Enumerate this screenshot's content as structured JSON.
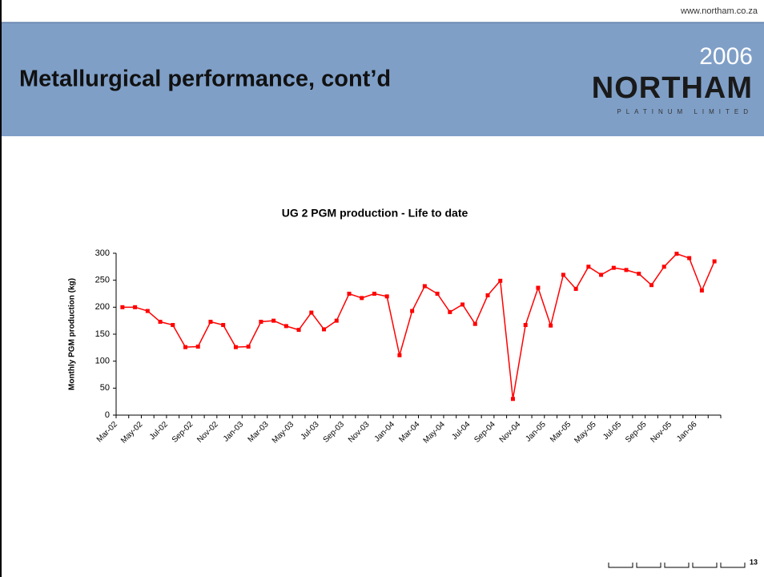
{
  "header": {
    "url": "www.northam.co.za",
    "title": "Metallurgical performance, cont’d",
    "year": "2006",
    "logo": "NORTHAM",
    "logo_sub": "PLATINUM LIMITED"
  },
  "page_number": "13",
  "chart_data": {
    "type": "line",
    "title": "UG 2 PGM production - Life to date",
    "y_label": "Monthly PGM production (kg)",
    "categories": [
      "Mar-02",
      null,
      "May-02",
      null,
      "Jul-02",
      null,
      "Sep-02",
      null,
      "Nov-02",
      null,
      "Jan-03",
      null,
      "Mar-03",
      null,
      "May-03",
      null,
      "Jul-03",
      null,
      "Sep-03",
      null,
      "Nov-03",
      null,
      "Jan-04",
      null,
      "Mar-04",
      null,
      "May-04",
      null,
      "Jul-04",
      null,
      "Sep-04",
      null,
      "Nov-04",
      null,
      "Jan-05",
      null,
      "Mar-05",
      null,
      "May-05",
      null,
      "Jul-05",
      null,
      "Sep-05",
      null,
      "Nov-05",
      null,
      "Jan-06",
      null
    ],
    "series": [
      {
        "name": "UG 2 PGM production",
        "color": "#ff0000",
        "values": [
          200,
          200,
          193,
          173,
          167,
          126,
          127,
          173,
          167,
          126,
          127,
          173,
          175,
          165,
          158,
          190,
          159,
          175,
          225,
          217,
          225,
          220,
          111,
          193,
          239,
          225,
          191,
          205,
          169,
          222,
          249,
          30,
          167,
          236,
          166,
          260,
          234,
          275,
          260,
          273,
          269,
          262,
          241,
          275,
          299,
          291,
          231,
          285
        ]
      }
    ],
    "ylim": [
      0,
      300
    ],
    "yticks": [
      0,
      50,
      100,
      150,
      200,
      250,
      300
    ],
    "grid": false,
    "legend": false
  }
}
